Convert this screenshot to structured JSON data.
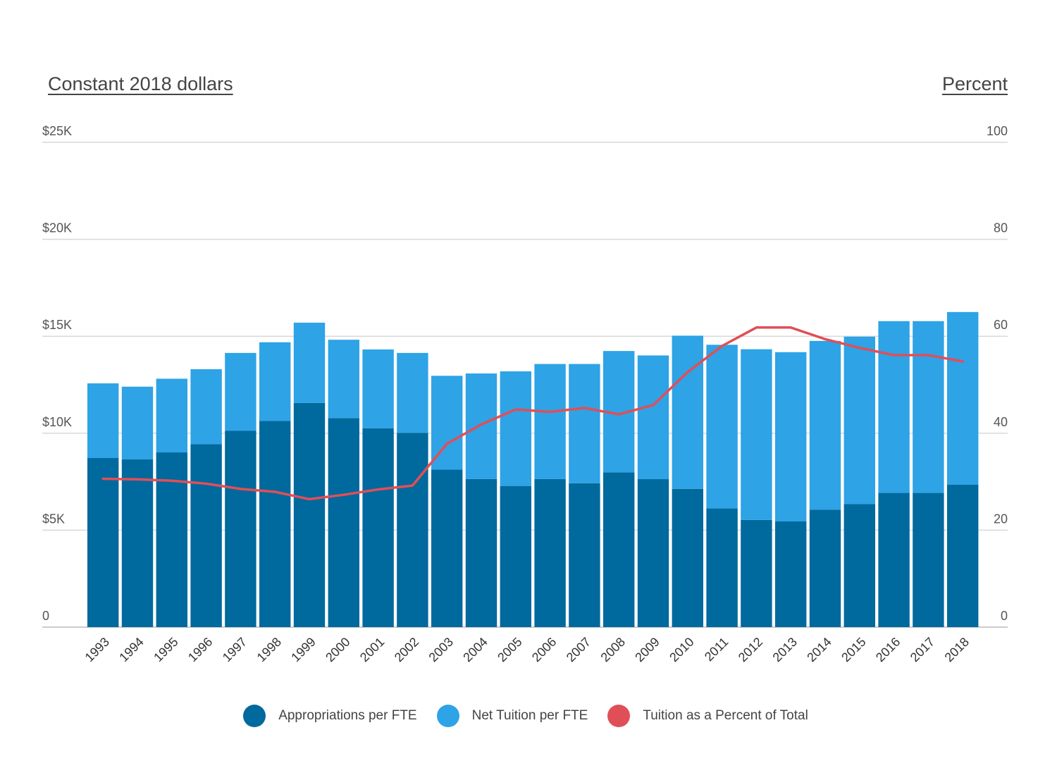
{
  "chart_data": {
    "type": "bar",
    "stacked": true,
    "left_axis_title": "Constant 2018 dollars",
    "right_axis_title": "Percent",
    "categories": [
      "1993",
      "1994",
      "1995",
      "1996",
      "1997",
      "1998",
      "1999",
      "2000",
      "2001",
      "2002",
      "2003",
      "2004",
      "2005",
      "2006",
      "2007",
      "2008",
      "2009",
      "2010",
      "2011",
      "2012",
      "2013",
      "2014",
      "2015",
      "2016",
      "2017",
      "2018"
    ],
    "series": [
      {
        "name": "Appropriations per FTE",
        "type": "bar",
        "axis": "left",
        "color": "#00699D",
        "values": [
          8720,
          8650,
          9010,
          9440,
          10120,
          10630,
          11560,
          10780,
          10250,
          10020,
          8120,
          7640,
          7280,
          7640,
          7420,
          7980,
          7630,
          7130,
          6120,
          5530,
          5450,
          6060,
          6340,
          6920,
          6920,
          7340
        ]
      },
      {
        "name": "Net Tuition per FTE",
        "type": "bar",
        "axis": "left",
        "color": "#2EA3E6",
        "values": [
          3850,
          3750,
          3800,
          3860,
          4020,
          4060,
          4140,
          4040,
          4070,
          4120,
          4840,
          5440,
          5910,
          5930,
          6150,
          6260,
          6380,
          7900,
          8440,
          8800,
          8730,
          8700,
          8640,
          8860,
          8860,
          8910
        ]
      },
      {
        "name": "Tuition as a Percent of Total",
        "type": "line",
        "axis": "right",
        "color": "#E04F57",
        "values": [
          30.6,
          30.5,
          30.2,
          29.6,
          28.5,
          27.9,
          26.4,
          27.3,
          28.4,
          29.2,
          37.8,
          41.8,
          44.9,
          44.4,
          45.2,
          43.9,
          45.8,
          52.6,
          58.0,
          61.8,
          61.8,
          59.4,
          57.6,
          56.1,
          56.1,
          54.8
        ]
      }
    ],
    "left_axis": {
      "ylim": [
        0,
        25000
      ],
      "ticks": [
        0,
        5000,
        10000,
        15000,
        20000,
        25000
      ],
      "tick_labels": [
        "0",
        "$5K",
        "$10K",
        "$15K",
        "$20K",
        "$25K"
      ]
    },
    "right_axis": {
      "ylim": [
        0,
        100
      ],
      "ticks": [
        0,
        20,
        40,
        60,
        80,
        100
      ],
      "tick_labels": [
        "0",
        "20",
        "40",
        "60",
        "80",
        "100"
      ]
    },
    "grid": true,
    "legend_position": "bottom-center"
  }
}
